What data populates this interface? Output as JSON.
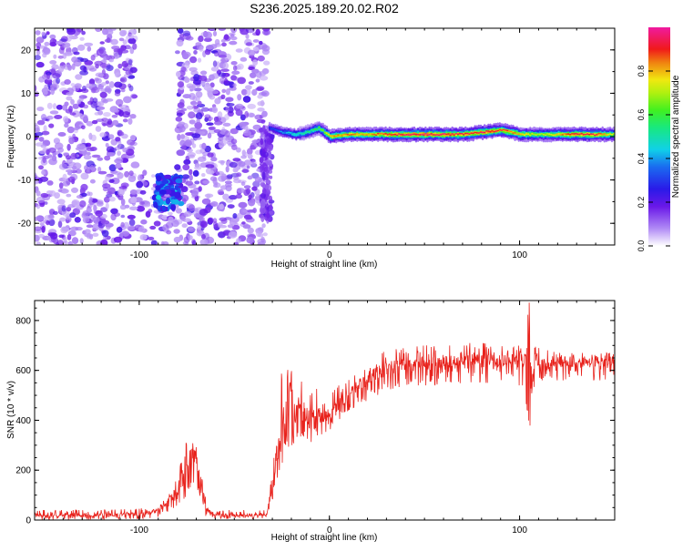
{
  "title": "S236.2025.189.20.02.R02",
  "colors": {
    "snr_line": "#e8221c",
    "axis": "#000000",
    "spectrogram_noise": "#8a3cf0",
    "spectrogram_peak": "#ff1a3a"
  },
  "chart_data": [
    {
      "type": "heatmap",
      "title": "S236.2025.189.20.02.R02",
      "xlabel": "Height of straight line (km)",
      "ylabel": "Frequency (Hz)",
      "xlim": [
        -155,
        150
      ],
      "ylim": [
        -25,
        25
      ],
      "x_ticks": [
        -100,
        0,
        100
      ],
      "x_tick_labels": [
        "-100",
        "0",
        "100"
      ],
      "y_ticks": [
        -20,
        -10,
        0,
        10,
        20
      ],
      "y_tick_labels": [
        "-20",
        "-10",
        "0",
        "10",
        "20"
      ],
      "grid": false,
      "colorbar": {
        "label": "Normalized spectral amplitude",
        "range": [
          0.0,
          1.0
        ],
        "ticks": [
          0.0,
          0.2,
          0.4,
          0.6,
          0.8
        ],
        "tick_labels": [
          "0.0",
          "0.2",
          "0.4",
          "0.6",
          "0.8"
        ],
        "colormap": "rainbow (white → violet → blue → cyan → green → yellow → red → magenta)"
      },
      "features": [
        {
          "x_range": [
            -155,
            -33
          ],
          "freq_range": [
            -25,
            25
          ],
          "amplitude": 0.05
        },
        {
          "x_range": [
            -102,
            -80
          ],
          "freq_range": [
            -25,
            25
          ],
          "amplitude": 0.0
        },
        {
          "x_range": [
            -92,
            -78
          ],
          "freq_range": [
            -17,
            -9
          ],
          "amplitude": 0.3
        },
        {
          "x_range": [
            -32,
            150
          ],
          "freq_range": [
            -2,
            2
          ],
          "amplitude": 0.95
        }
      ],
      "ridge": {
        "x": [
          -32,
          -25,
          -18,
          -12,
          -6,
          0,
          10,
          20,
          30,
          40,
          50,
          60,
          70,
          80,
          90,
          100,
          110,
          120,
          130,
          140,
          150
        ],
        "freq": [
          2,
          1,
          0.5,
          1,
          2,
          0,
          0.5,
          0.5,
          0.5,
          0.5,
          0.5,
          0.5,
          0.5,
          1,
          1.5,
          0.5,
          0.5,
          0.5,
          0.5,
          0.5,
          0.5
        ],
        "amplitude": [
          0.3,
          0.4,
          0.5,
          0.55,
          0.6,
          0.8,
          0.85,
          0.8,
          0.9,
          0.95,
          0.95,
          0.95,
          0.9,
          0.95,
          0.9,
          0.8,
          0.7,
          0.8,
          0.95,
          0.9,
          0.7
        ]
      }
    },
    {
      "type": "line",
      "xlabel": "Height of straight line (km)",
      "ylabel": "SNR (10 * v/v)",
      "xlim": [
        -155,
        150
      ],
      "ylim": [
        0,
        880
      ],
      "x_ticks": [
        -100,
        0,
        100
      ],
      "x_tick_labels": [
        "-100",
        "0",
        "100"
      ],
      "y_ticks": [
        0,
        200,
        400,
        600,
        800
      ],
      "y_tick_labels": [
        "0",
        "200",
        "400",
        "600",
        "800"
      ],
      "grid": false,
      "series": [
        {
          "x": [
            -155,
            -140,
            -120,
            -100,
            -90,
            -85,
            -80,
            -77,
            -75,
            -72,
            -70,
            -67,
            -65,
            -60,
            -50,
            -40,
            -33,
            -30,
            -28,
            -25,
            -22,
            -20,
            -18,
            -15,
            -12,
            -10,
            -7,
            -5,
            0,
            5,
            10,
            15,
            20,
            25,
            30,
            40,
            50,
            60,
            70,
            80,
            90,
            95,
            100,
            102,
            104,
            105,
            106,
            108,
            110,
            115,
            120,
            130,
            140,
            150
          ],
          "values": [
            20,
            20,
            20,
            25,
            35,
            70,
            120,
            180,
            230,
            280,
            240,
            150,
            40,
            20,
            20,
            20,
            20,
            150,
            260,
            350,
            480,
            520,
            430,
            460,
            420,
            400,
            440,
            420,
            420,
            470,
            500,
            540,
            560,
            590,
            610,
            620,
            630,
            630,
            635,
            640,
            640,
            630,
            640,
            650,
            720,
            780,
            520,
            640,
            630,
            630,
            630,
            630,
            630,
            640
          ],
          "min_envelope": [
            2,
            2,
            2,
            5,
            10,
            30,
            60,
            80,
            100,
            120,
            110,
            60,
            10,
            5,
            5,
            5,
            5,
            60,
            150,
            200,
            260,
            300,
            300,
            320,
            320,
            310,
            330,
            340,
            360,
            400,
            440,
            460,
            480,
            500,
            520,
            540,
            540,
            540,
            550,
            550,
            550,
            540,
            540,
            540,
            440,
            250,
            500,
            540,
            560,
            560,
            560,
            560,
            560,
            560
          ],
          "max_envelope": [
            40,
            40,
            40,
            45,
            60,
            110,
            180,
            260,
            320,
            340,
            290,
            220,
            80,
            40,
            40,
            40,
            40,
            250,
            400,
            600,
            620,
            600,
            560,
            560,
            520,
            500,
            530,
            500,
            500,
            540,
            560,
            600,
            620,
            660,
            680,
            690,
            700,
            700,
            710,
            710,
            700,
            690,
            700,
            720,
            880,
            880,
            680,
            700,
            690,
            680,
            670,
            670,
            670,
            670
          ]
        }
      ]
    }
  ]
}
